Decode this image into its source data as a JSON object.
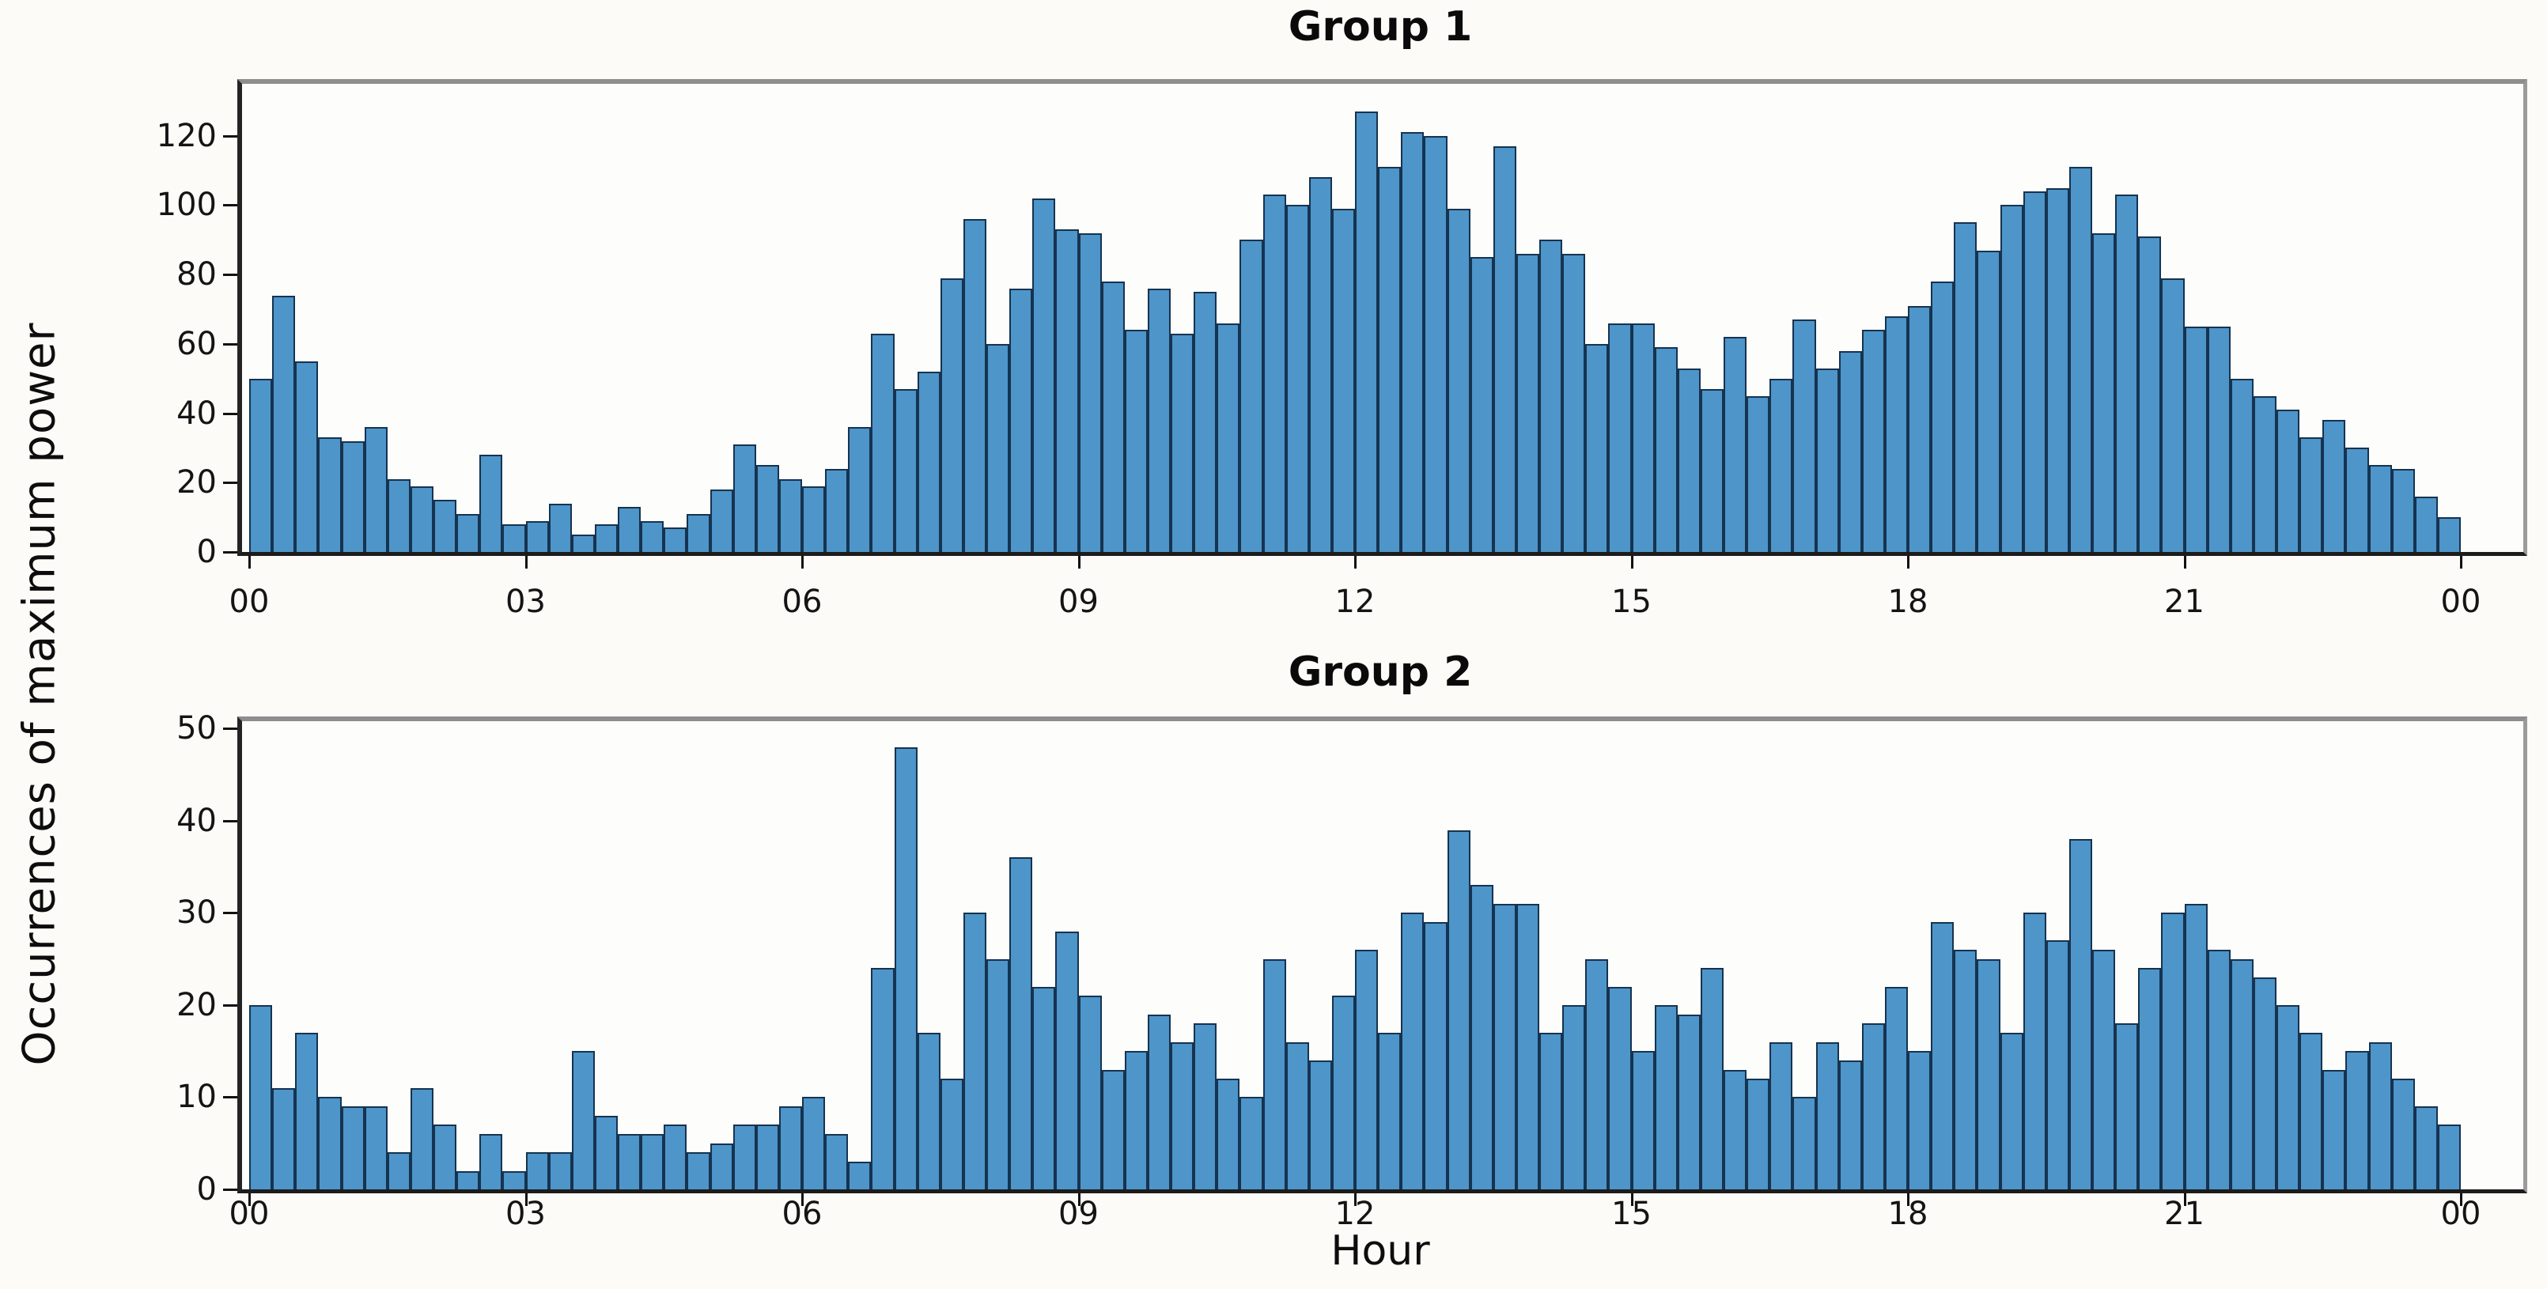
{
  "figure": {
    "ylabel": "Occurrences of maximum power",
    "xlabel": "Hour",
    "background": "#fcfbf7",
    "bar_fill_color": "#4e95c9",
    "bar_edge_color": "#16334f"
  },
  "chart_data": [
    {
      "type": "bar",
      "title": "Group 1",
      "xlabel": "",
      "ylabel": "",
      "bins_per_hour": 4,
      "x_tick_hours": [
        0,
        3,
        6,
        9,
        12,
        15,
        18,
        21,
        24
      ],
      "x_tick_labels": [
        "00",
        "03",
        "06",
        "09",
        "12",
        "15",
        "18",
        "21",
        "00"
      ],
      "y_ticks": [
        0,
        20,
        40,
        60,
        80,
        100,
        120
      ],
      "ylim": [
        0,
        135
      ],
      "grid": false,
      "legend": null,
      "values": [
        50,
        74,
        55,
        33,
        32,
        36,
        21,
        19,
        15,
        11,
        28,
        8,
        9,
        14,
        5,
        8,
        13,
        9,
        7,
        11,
        18,
        31,
        25,
        21,
        19,
        24,
        36,
        63,
        47,
        52,
        79,
        96,
        60,
        76,
        102,
        93,
        92,
        78,
        64,
        76,
        63,
        75,
        66,
        90,
        103,
        100,
        108,
        99,
        127,
        111,
        121,
        120,
        99,
        85,
        117,
        86,
        90,
        86,
        60,
        66,
        66,
        59,
        53,
        47,
        62,
        45,
        50,
        67,
        53,
        58,
        64,
        68,
        71,
        78,
        95,
        87,
        100,
        104,
        105,
        111,
        92,
        103,
        91,
        79,
        65,
        65,
        50,
        45,
        41,
        33,
        38,
        30,
        25,
        24,
        16,
        10
      ]
    },
    {
      "type": "bar",
      "title": "Group 2",
      "xlabel": "",
      "ylabel": "",
      "bins_per_hour": 4,
      "x_tick_hours": [
        0,
        3,
        6,
        9,
        12,
        15,
        18,
        21,
        24
      ],
      "x_tick_labels": [
        "00",
        "03",
        "06",
        "09",
        "12",
        "15",
        "18",
        "21",
        "00"
      ],
      "y_ticks": [
        0,
        10,
        20,
        30,
        40,
        50
      ],
      "ylim": [
        0,
        50.8
      ],
      "grid": false,
      "legend": null,
      "values": [
        20,
        11,
        17,
        10,
        9,
        9,
        4,
        11,
        7,
        2,
        6,
        2,
        4,
        4,
        15,
        8,
        6,
        6,
        7,
        4,
        5,
        7,
        7,
        9,
        10,
        6,
        3,
        24,
        48,
        17,
        12,
        30,
        25,
        36,
        22,
        28,
        21,
        13,
        15,
        19,
        16,
        18,
        12,
        10,
        25,
        16,
        14,
        21,
        26,
        17,
        30,
        29,
        39,
        33,
        31,
        31,
        17,
        20,
        25,
        22,
        15,
        20,
        19,
        24,
        13,
        12,
        16,
        10,
        16,
        14,
        18,
        22,
        15,
        29,
        26,
        25,
        17,
        30,
        27,
        38,
        26,
        18,
        24,
        30,
        31,
        26,
        25,
        23,
        20,
        17,
        13,
        15,
        16,
        12,
        9,
        7
      ]
    }
  ]
}
